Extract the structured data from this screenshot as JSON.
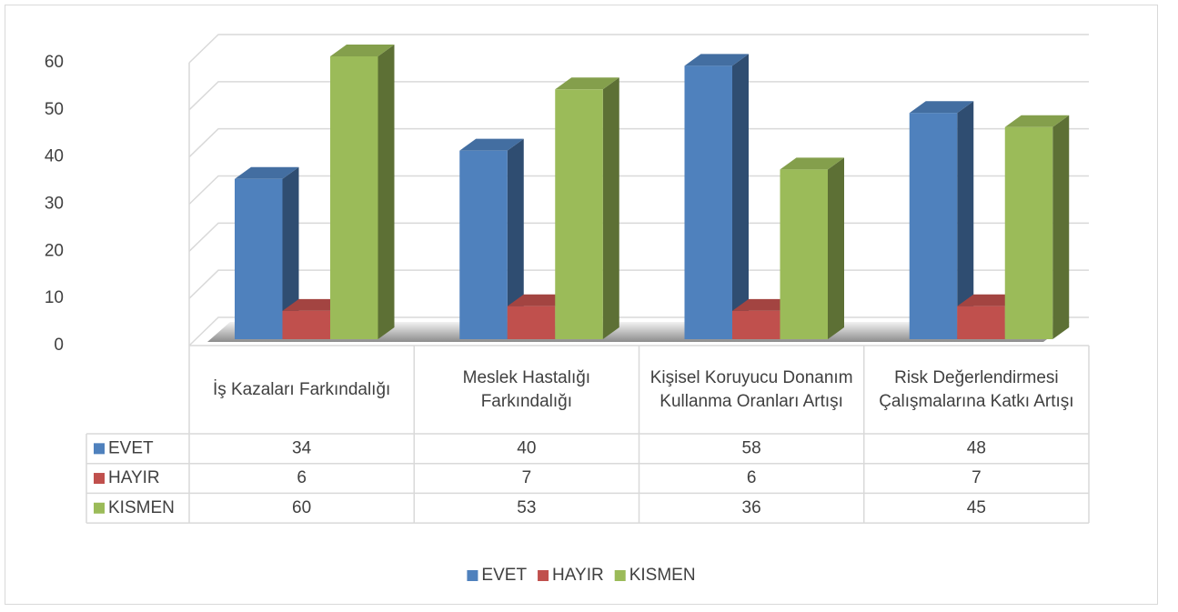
{
  "chart_data": {
    "type": "bar3d",
    "categories": [
      "İş Kazaları Farkındalığı",
      "Meslek Hastalığı Farkındalığı",
      "Kişisel Koruyucu Donanım Kullanma Oranları Artışı",
      "Risk Değerlendirmesi Çalışmalarına Katkı Artışı"
    ],
    "series": [
      {
        "name": "EVET",
        "color": "#4f81bd",
        "values": [
          34,
          40,
          58,
          48
        ]
      },
      {
        "name": "HAYIR",
        "color": "#c0504d",
        "values": [
          6,
          7,
          6,
          7
        ]
      },
      {
        "name": "KISMEN",
        "color": "#9bbb59",
        "values": [
          60,
          53,
          36,
          45
        ]
      }
    ],
    "ylim": [
      0,
      60
    ],
    "yticks": [
      0,
      10,
      20,
      30,
      40,
      50,
      60
    ],
    "grid": true,
    "legend": "bottom",
    "data_table": true
  }
}
